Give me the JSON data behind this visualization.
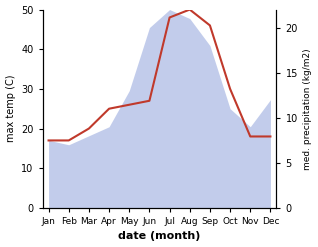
{
  "months": [
    "Jan",
    "Feb",
    "Mar",
    "Apr",
    "May",
    "Jun",
    "Jul",
    "Aug",
    "Sep",
    "Oct",
    "Nov",
    "Dec"
  ],
  "month_indices": [
    0,
    1,
    2,
    3,
    4,
    5,
    6,
    7,
    8,
    9,
    10,
    11
  ],
  "temperature": [
    17,
    17,
    20,
    25,
    26,
    27,
    48,
    50,
    46,
    30,
    18,
    18
  ],
  "precipitation": [
    7.5,
    7,
    8,
    9,
    13,
    20,
    22,
    21,
    18,
    11,
    9,
    12
  ],
  "temp_ylim": [
    0,
    50
  ],
  "precip_ylim": [
    0,
    22
  ],
  "temp_color": "#c0392b",
  "precip_fill_color": "#b8c4e8",
  "precip_fill_alpha": 0.85,
  "xlabel": "date (month)",
  "ylabel_left": "max temp (C)",
  "ylabel_right": "med. precipitation (kg/m2)",
  "left_yticks": [
    0,
    10,
    20,
    30,
    40,
    50
  ],
  "right_yticks": [
    0,
    5,
    10,
    15,
    20
  ],
  "figsize": [
    3.18,
    2.47
  ],
  "dpi": 100
}
